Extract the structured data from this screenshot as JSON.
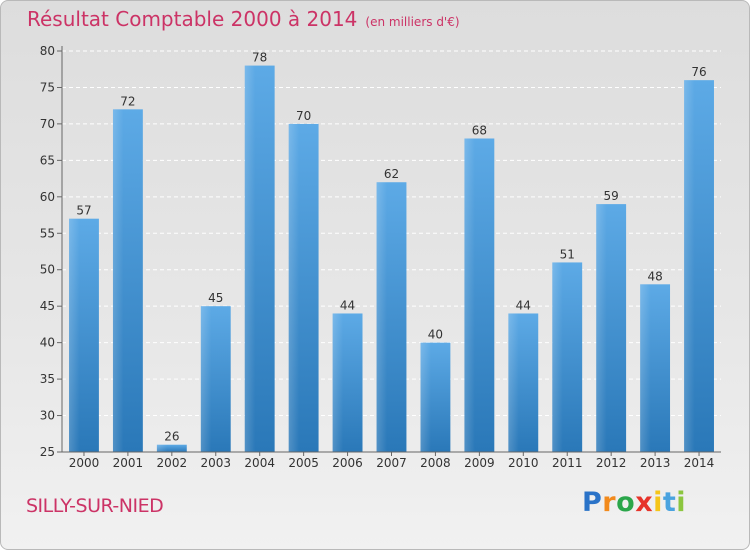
{
  "title": "Résultat Comptable 2000 à 2014",
  "subtitle": "(en milliers d'€)",
  "commune": "SILLY-SUR-NIED",
  "logo": {
    "letters": [
      "P",
      "r",
      "o",
      "x",
      "i",
      "t",
      "i"
    ],
    "colors": [
      "#2a73c8",
      "#f28a1c",
      "#2aa64a",
      "#e6332a",
      "#f5c518",
      "#4aa3df",
      "#8cc63f"
    ],
    "name": "Proxiti"
  },
  "colors": {
    "bar_light": "#5daae6",
    "bar_dark": "#2a78b8",
    "title": "#cc3366"
  },
  "chart_data": {
    "type": "bar",
    "categories": [
      "2000",
      "2001",
      "2002",
      "2003",
      "2004",
      "2005",
      "2006",
      "2007",
      "2008",
      "2009",
      "2010",
      "2011",
      "2012",
      "2013",
      "2014"
    ],
    "values": [
      57,
      72,
      26,
      45,
      78,
      70,
      44,
      62,
      40,
      68,
      44,
      51,
      59,
      48,
      76
    ],
    "title": "Résultat Comptable 2000 à 2014",
    "subtitle": "(en milliers d'€)",
    "xlabel": "",
    "ylabel": "",
    "ylim": [
      25,
      80
    ],
    "yticks": [
      25,
      30,
      35,
      40,
      45,
      50,
      55,
      60,
      65,
      70,
      75,
      80
    ],
    "grid": true,
    "value_labels": true
  }
}
